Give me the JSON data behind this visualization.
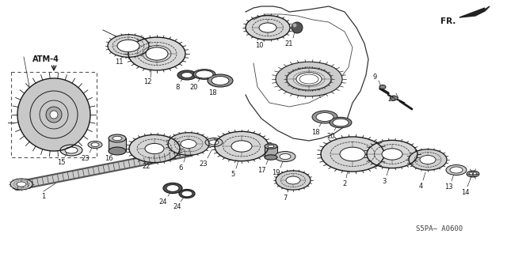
{
  "bg_color": "#ffffff",
  "fig_width": 6.4,
  "fig_height": 3.2,
  "dpi": 100,
  "dark": "#1a1a1a",
  "gray": "#888888",
  "sspa_text": "S5PA– A0600",
  "fr_text": "FR.",
  "atm4_text": "ATM-4"
}
